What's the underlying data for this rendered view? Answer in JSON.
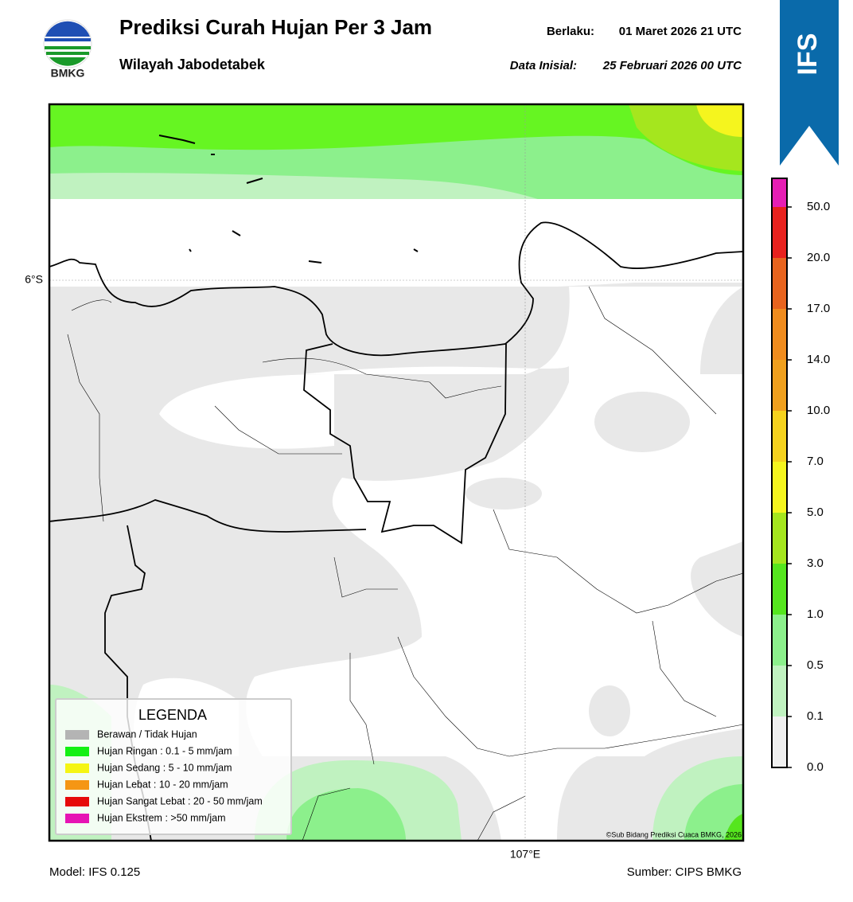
{
  "header": {
    "logo_text": "BMKG",
    "title": "Prediksi Curah Hujan Per 3 Jam",
    "subtitle": "Wilayah Jabodetabek",
    "valid_label": "Berlaku:",
    "valid_time": "01 Maret 2026 21 UTC",
    "init_label": "Data Inisial:",
    "init_time": "25 Februari 2026 00 UTC",
    "model_badge": "IFS"
  },
  "map": {
    "lat_label": "6°S",
    "lon_label": "107°E",
    "copyright": "©Sub Bidang Prediksi Cuaca BMKG, 2026"
  },
  "legend": {
    "title": "LEGENDA",
    "items": [
      {
        "label": "Berawan / Tidak Hujan",
        "color": "#b4b4b4"
      },
      {
        "label": "Hujan Ringan : 0.1 - 5 mm/jam",
        "color": "#14f014"
      },
      {
        "label": "Hujan Sedang : 5 - 10 mm/jam",
        "color": "#f5f514"
      },
      {
        "label": "Hujan Lebat : 10 - 20 mm/jam",
        "color": "#f59614"
      },
      {
        "label": "Hujan Sangat Lebat : 20 - 50 mm/jam",
        "color": "#e60a0a"
      },
      {
        "label": "Hujan Ekstrem : >50 mm/jam",
        "color": "#e614b4"
      }
    ]
  },
  "colorbar": {
    "ticks": [
      "0.0",
      "0.1",
      "0.5",
      "1.0",
      "3.0",
      "5.0",
      "7.0",
      "10.0",
      "14.0",
      "17.0",
      "20.0",
      "50.0"
    ],
    "colors": [
      "#f0f0f0",
      "#c0f2c0",
      "#8cf08c",
      "#55e61e",
      "#a5e61e",
      "#f5f51e",
      "#f5d21e",
      "#f0a01e",
      "#f08c1e",
      "#e8641e",
      "#e8221e",
      "#e61eb4"
    ]
  },
  "footer": {
    "model": "Model: IFS 0.125",
    "source": "Sumber: CIPS BMKG"
  }
}
